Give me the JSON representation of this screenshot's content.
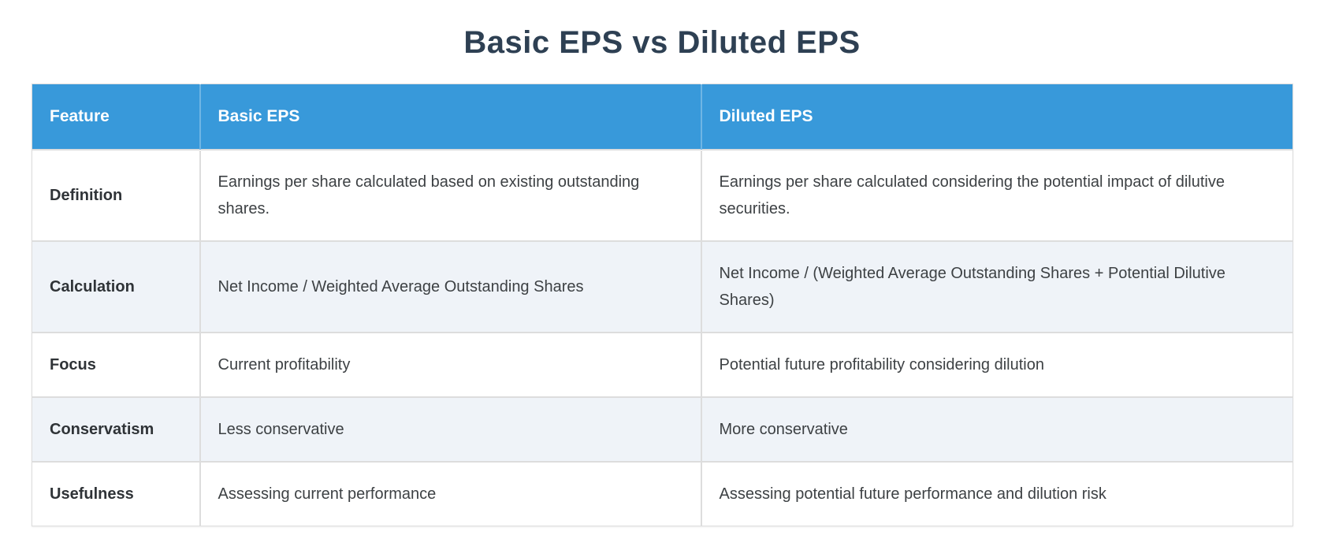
{
  "page": {
    "title": "Basic EPS vs Diluted EPS"
  },
  "table": {
    "columns": [
      {
        "label": "Feature"
      },
      {
        "label": "Basic EPS"
      },
      {
        "label": "Diluted EPS"
      }
    ],
    "rows": [
      {
        "feature": "Definition",
        "basic": "Earnings per share calculated based on existing outstanding shares.",
        "diluted": "Earnings per share calculated considering the potential impact of dilutive securities."
      },
      {
        "feature": "Calculation",
        "basic": "Net Income / Weighted Average Outstanding Shares",
        "diluted": "Net Income / (Weighted Average Outstanding Shares + Potential Dilutive Shares)"
      },
      {
        "feature": "Focus",
        "basic": "Current profitability",
        "diluted": "Potential future profitability considering dilution"
      },
      {
        "feature": "Conservatism",
        "basic": "Less conservative",
        "diluted": "More conservative"
      },
      {
        "feature": "Usefulness",
        "basic": "Assessing current performance",
        "diluted": "Assessing potential future performance and dilution risk"
      }
    ]
  },
  "colors": {
    "header_bg": "#3899da",
    "header_text": "#ffffff",
    "row_bg": "#ffffff",
    "row_alt_bg": "#eff3f8",
    "border": "#dddddd",
    "title_text": "#2e4053",
    "body_text": "#3d4144"
  }
}
